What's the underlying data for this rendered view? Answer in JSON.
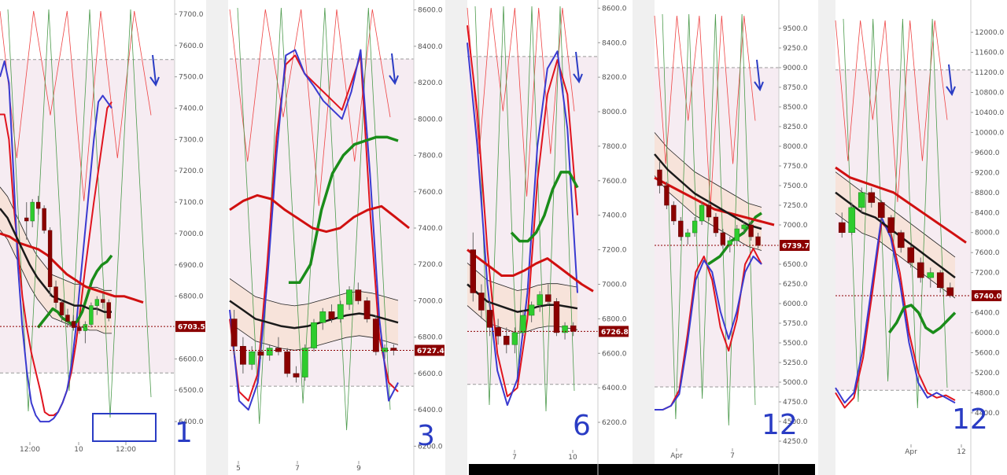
{
  "chart_data": [
    {
      "type": "line",
      "panel_label": "1",
      "x_ticks": [
        "12:00",
        "10",
        "12:00"
      ],
      "y_ticks": [
        "7700.0",
        "7600.0",
        "7500.0",
        "7400.0",
        "7300.0",
        "7200.0",
        "7100.0",
        "7000.0",
        "6900.0",
        "6800.0",
        "6700.0",
        "6600.0",
        "6500.0",
        "6400.0"
      ],
      "ylim": [
        6350,
        7720
      ],
      "price_label": "6703.5",
      "last_price": 6703.5,
      "dashed_levels": [
        7555,
        6555
      ],
      "candles_ohlc": [
        [
          7050,
          7100,
          6980,
          7040
        ],
        [
          7040,
          7110,
          7020,
          7100
        ],
        [
          7100,
          7120,
          7060,
          7080
        ],
        [
          7080,
          7090,
          7000,
          7010
        ],
        [
          7010,
          7020,
          6800,
          6830
        ],
        [
          6830,
          6850,
          6760,
          6780
        ],
        [
          6780,
          6790,
          6720,
          6740
        ],
        [
          6740,
          6760,
          6700,
          6720
        ],
        [
          6720,
          6740,
          6690,
          6700
        ],
        [
          6700,
          6720,
          6680,
          6690
        ],
        [
          6690,
          6720,
          6650,
          6710
        ],
        [
          6710,
          6780,
          6700,
          6770
        ],
        [
          6770,
          6800,
          6740,
          6790
        ],
        [
          6790,
          6810,
          6760,
          6780
        ],
        [
          6780,
          6790,
          6720,
          6730
        ]
      ],
      "series": [
        {
          "color": "#e0141e",
          "values": [
            7380,
            7380,
            7300,
            7100,
            6950,
            6800,
            6700,
            6620,
            6560,
            6500,
            6430,
            6420,
            6420,
            6430,
            6460,
            6500,
            6560,
            6650,
            6760,
            6880,
            6990,
            7100,
            7200,
            7300,
            7400,
            7420
          ]
        },
        {
          "color": "#3a3ad0",
          "values": [
            7500,
            7550,
            7480,
            7200,
            6900,
            6700,
            6560,
            6460,
            6420,
            6400,
            6400,
            6400,
            6410,
            6430,
            6460,
            6500,
            6580,
            6700,
            6850,
            7000,
            7150,
            7300,
            7420,
            7440,
            7420,
            7400
          ]
        },
        {
          "color": "#1a8c1a",
          "values": [
            6700,
            6720,
            6740,
            6760,
            6750,
            6730,
            6720,
            6710,
            6720,
            6750,
            6800,
            6850,
            6880,
            6900,
            6910,
            6930
          ]
        },
        {
          "color": "#d01010",
          "values": [
            7000,
            6990,
            6970,
            6960,
            6950,
            6930,
            6900,
            6870,
            6850,
            6830,
            6820,
            6810,
            6800,
            6800,
            6790,
            6780
          ]
        },
        {
          "color": "#1a1a1a",
          "values": [
            7080,
            7050,
            7000,
            6950,
            6900,
            6860,
            6830,
            6800,
            6790,
            6780,
            6770,
            6770,
            6760,
            6760,
            6750,
            6750
          ]
        }
      ]
    },
    {
      "type": "line",
      "panel_label": "3",
      "x_ticks": [
        "5",
        "7",
        "9"
      ],
      "y_ticks": [
        "8600.0",
        "8400.0",
        "8200.0",
        "8000.0",
        "7800.0",
        "7600.0",
        "7400.0",
        "7200.0",
        "7000.0",
        "6800.0",
        "6600.0",
        "6400.0",
        "6200.0"
      ],
      "ylim": [
        6180,
        8620
      ],
      "price_label": "6727.4",
      "last_price": 6727.4,
      "dashed_levels": [
        8330,
        6530
      ],
      "candles_ohlc": [
        [
          6900,
          6950,
          6700,
          6750
        ],
        [
          6750,
          6800,
          6600,
          6650
        ],
        [
          6650,
          6750,
          6620,
          6720
        ],
        [
          6720,
          6780,
          6680,
          6700
        ],
        [
          6700,
          6760,
          6670,
          6740
        ],
        [
          6740,
          6800,
          6700,
          6720
        ],
        [
          6720,
          6740,
          6580,
          6600
        ],
        [
          6600,
          6640,
          6550,
          6580
        ],
        [
          6580,
          6760,
          6560,
          6740
        ],
        [
          6740,
          6900,
          6720,
          6880
        ],
        [
          6880,
          6960,
          6840,
          6940
        ],
        [
          6940,
          6980,
          6880,
          6900
        ],
        [
          6900,
          7000,
          6880,
          6980
        ],
        [
          6980,
          7080,
          6950,
          7060
        ],
        [
          7060,
          7100,
          6980,
          7000
        ],
        [
          7000,
          7020,
          6880,
          6900
        ],
        [
          6900,
          6920,
          6700,
          6720
        ],
        [
          6720,
          6760,
          6680,
          6740
        ],
        [
          6740,
          6760,
          6700,
          6727
        ]
      ],
      "series": [
        {
          "color": "#e0141e",
          "values": [
            6900,
            6500,
            6450,
            6600,
            7200,
            7900,
            8300,
            8350,
            8250,
            8200,
            8150,
            8100,
            8050,
            8200,
            8350,
            7500,
            6800,
            6550,
            6500
          ]
        },
        {
          "color": "#3a3ad0",
          "values": [
            6950,
            6450,
            6400,
            6550,
            7100,
            7800,
            8350,
            8380,
            8250,
            8180,
            8100,
            8050,
            8000,
            8150,
            8380,
            7700,
            6900,
            6450,
            6550
          ]
        },
        {
          "color": "#1a8c1a",
          "values": [
            7100,
            7100,
            7200,
            7500,
            7700,
            7800,
            7860,
            7880,
            7900,
            7900,
            7880
          ]
        },
        {
          "color": "#d01010",
          "values": [
            7500,
            7550,
            7580,
            7560,
            7500,
            7450,
            7400,
            7380,
            7400,
            7460,
            7500,
            7520,
            7460,
            7400
          ]
        },
        {
          "color": "#1a1a1a",
          "values": [
            7000,
            6950,
            6900,
            6880,
            6860,
            6850,
            6860,
            6880,
            6900,
            6920,
            6930,
            6920,
            6900,
            6880
          ]
        }
      ]
    },
    {
      "type": "line",
      "panel_label": "6",
      "x_ticks": [
        "7",
        "10"
      ],
      "y_ticks": [
        "8600.0",
        "8400.0",
        "8200.0",
        "8000.0",
        "7800.0",
        "7600.0",
        "7400.0",
        "7200.0",
        "7000.0",
        "6800.0",
        "6600.0",
        "6400.0",
        "6200.0"
      ],
      "ylim": [
        6150,
        8620
      ],
      "price_label": "6726.8",
      "last_price": 6726.8,
      "dashed_levels": [
        8320,
        6420
      ],
      "candles_ohlc": [
        [
          7200,
          7300,
          6900,
          6950
        ],
        [
          6950,
          7000,
          6800,
          6850
        ],
        [
          6850,
          6900,
          6700,
          6750
        ],
        [
          6750,
          6800,
          6650,
          6700
        ],
        [
          6700,
          6750,
          6600,
          6650
        ],
        [
          6650,
          6750,
          6600,
          6720
        ],
        [
          6720,
          6850,
          6700,
          6820
        ],
        [
          6820,
          6900,
          6780,
          6880
        ],
        [
          6880,
          6960,
          6840,
          6940
        ],
        [
          6940,
          7000,
          6880,
          6900
        ],
        [
          6900,
          6920,
          6700,
          6720
        ],
        [
          6720,
          6780,
          6680,
          6760
        ],
        [
          6760,
          6780,
          6700,
          6726.8
        ]
      ],
      "series": [
        {
          "color": "#e0141e",
          "values": [
            8500,
            8000,
            7200,
            6600,
            6350,
            6400,
            6800,
            7600,
            8100,
            8300,
            8100,
            7400
          ]
        },
        {
          "color": "#3a3ad0",
          "values": [
            8400,
            7800,
            7000,
            6500,
            6300,
            6450,
            6950,
            7800,
            8250,
            8350,
            7900,
            6950
          ]
        },
        {
          "color": "#1a8c1a",
          "values": [
            7300,
            7250,
            7250,
            7300,
            7400,
            7550,
            7650,
            7650,
            7560
          ]
        },
        {
          "color": "#d01010",
          "values": [
            7200,
            7150,
            7100,
            7050,
            7050,
            7080,
            7120,
            7150,
            7100,
            7050,
            7000,
            6960
          ]
        },
        {
          "color": "#1a1a1a",
          "values": [
            7000,
            6950,
            6900,
            6880,
            6860,
            6840,
            6850,
            6870,
            6880,
            6880,
            6870,
            6860
          ]
        }
      ]
    },
    {
      "type": "line",
      "panel_label": "12",
      "x_ticks": [
        "Apr",
        "7"
      ],
      "y_ticks": [
        "9500.0",
        "9250.0",
        "9000.0",
        "8750.0",
        "8500.0",
        "8250.0",
        "8000.0",
        "7750.0",
        "7500.0",
        "7250.0",
        "7000.0",
        "6750.0",
        "6500.0",
        "6250.0",
        "6000.0",
        "5750.0",
        "5500.0",
        "5250.0",
        "5000.0",
        "4750.0",
        "4500.0",
        "4250.0"
      ],
      "ylim": [
        4200,
        9700
      ],
      "price_label": "6739.7",
      "last_price": 6739.7,
      "dashed_levels": [
        9000,
        4940
      ],
      "candles_ohlc": [
        [
          7700,
          7800,
          7400,
          7500
        ],
        [
          7500,
          7550,
          7200,
          7250
        ],
        [
          7250,
          7300,
          7000,
          7050
        ],
        [
          7050,
          7100,
          6800,
          6850
        ],
        [
          6850,
          6950,
          6750,
          6900
        ],
        [
          6900,
          7100,
          6850,
          7050
        ],
        [
          7050,
          7300,
          7000,
          7250
        ],
        [
          7250,
          7300,
          7050,
          7100
        ],
        [
          7100,
          7150,
          6850,
          6900
        ],
        [
          6900,
          6950,
          6700,
          6750
        ],
        [
          6750,
          6850,
          6650,
          6800
        ],
        [
          6800,
          7000,
          6750,
          6950
        ],
        [
          6950,
          7050,
          6900,
          7000
        ],
        [
          7000,
          7050,
          6800,
          6850
        ],
        [
          6850,
          6900,
          6700,
          6739.7
        ]
      ],
      "series": [
        {
          "color": "#e0141e",
          "values": [
            4650,
            4650,
            4700,
            4900,
            5600,
            6400,
            6600,
            6300,
            5700,
            5400,
            5800,
            6500,
            6700,
            6500
          ]
        },
        {
          "color": "#3a3ad0",
          "values": [
            4650,
            4650,
            4700,
            4850,
            5500,
            6300,
            6550,
            6400,
            5900,
            5550,
            5900,
            6400,
            6600,
            6500
          ]
        },
        {
          "color": "#1a8c1a",
          "values": [
            6500,
            6550,
            6600,
            6700,
            6800,
            6850,
            6900,
            7000,
            7100,
            7150
          ]
        },
        {
          "color": "#d01010",
          "values": [
            7600,
            7500,
            7400,
            7300,
            7200,
            7150,
            7100,
            7050,
            7000
          ]
        },
        {
          "color": "#1a1a1a",
          "values": [
            7900,
            7700,
            7550,
            7400,
            7300,
            7200,
            7100,
            7000,
            6950
          ]
        }
      ]
    },
    {
      "type": "line",
      "panel_label": "12",
      "x_ticks": [
        "Apr",
        "12"
      ],
      "y_ticks": [
        "12000.0",
        "11600.0",
        "11200.0",
        "10800.0",
        "10400.0",
        "10000.0",
        "9600.0",
        "9200.0",
        "8800.0",
        "8400.0",
        "8000.0",
        "7600.0",
        "7200.0",
        "6800.0",
        "6400.0",
        "6000.0",
        "5600.0",
        "5200.0",
        "4800.0",
        "4400.0"
      ],
      "ylim": [
        4100,
        12300
      ],
      "price_label": "6740.0",
      "last_price": 6740.0,
      "dashed_levels": [
        11250,
        4850
      ],
      "candles_ohlc": [
        [
          8200,
          8400,
          7900,
          8000
        ],
        [
          8000,
          8600,
          7950,
          8500
        ],
        [
          8500,
          8900,
          8400,
          8800
        ],
        [
          8800,
          8900,
          8500,
          8600
        ],
        [
          8600,
          8650,
          8200,
          8300
        ],
        [
          8300,
          8350,
          7900,
          8000
        ],
        [
          8000,
          8050,
          7600,
          7700
        ],
        [
          7700,
          7750,
          7300,
          7400
        ],
        [
          7400,
          7500,
          7000,
          7100
        ],
        [
          7100,
          7300,
          6900,
          7200
        ],
        [
          7200,
          7250,
          6800,
          6900
        ],
        [
          6900,
          7000,
          6700,
          6740
        ]
      ],
      "series": [
        {
          "color": "#e0141e",
          "values": [
            4800,
            4500,
            4700,
            5500,
            6800,
            8200,
            8000,
            7200,
            6000,
            5200,
            4800,
            4700,
            4750,
            4650
          ]
        },
        {
          "color": "#3a3ad0",
          "values": [
            4900,
            4600,
            4800,
            5700,
            7000,
            8300,
            7900,
            7000,
            5800,
            5000,
            4700,
            4800,
            4700,
            4600
          ]
        },
        {
          "color": "#1a8c1a",
          "values": [
            6000,
            6200,
            6500,
            6550,
            6400,
            6100,
            6000,
            6100,
            6250,
            6400
          ]
        },
        {
          "color": "#d01010",
          "values": [
            9300,
            9100,
            9000,
            8900,
            8800,
            8600,
            8400,
            8200,
            8000,
            7800
          ]
        },
        {
          "color": "#1a1a1a",
          "values": [
            8800,
            8600,
            8400,
            8300,
            8100,
            7900,
            7700,
            7500,
            7300,
            7100
          ]
        }
      ]
    }
  ],
  "colors": {
    "bull_candle": "#2ecc2e",
    "bear_candle": "#8b0000",
    "price_tag": "#8b0000",
    "pink_band": "#f6ecf2",
    "envelope_fill": "#f7e2d6",
    "annotation": "#2a3cc4",
    "panel_gap": "#f0f0f0"
  }
}
